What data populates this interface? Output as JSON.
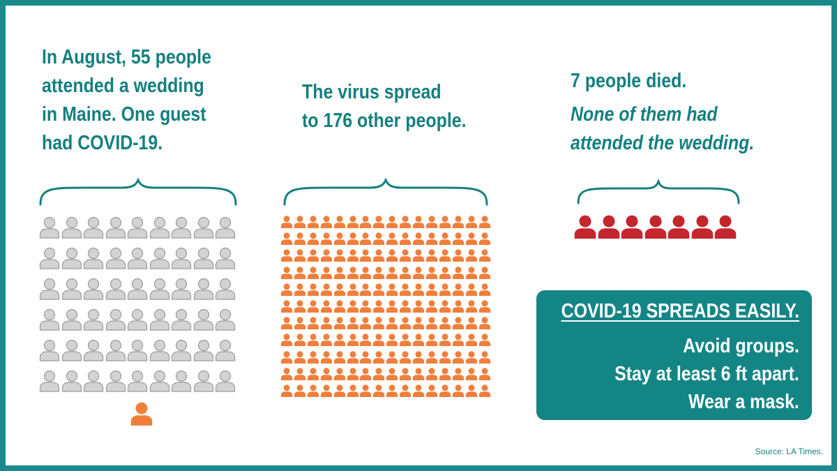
{
  "colors": {
    "teal": "#1a8a8a",
    "text_teal": "#14807f",
    "attendee_gray": "#d3d3d3",
    "infected_orange": "#f07f3c",
    "died_red": "#c4262e",
    "white": "#ffffff"
  },
  "panel_wedding": {
    "lines": [
      "In August, 55 people",
      "attended a wedding",
      "in Maine. One guest",
      "had COVID-19."
    ],
    "icon": "person-icon",
    "attendee_count": 54,
    "infected_guest_count": 1
  },
  "panel_spread": {
    "lines": [
      "The virus spread",
      "to 176 other people."
    ],
    "icon": "person-icon",
    "infected_count": 176
  },
  "panel_deaths": {
    "line": "7 people died.",
    "italic_lines": [
      "None of them had",
      "attended the wedding."
    ],
    "icon": "person-icon",
    "death_count": 7
  },
  "callout": {
    "headline": "COVID-19 SPREADS EASILY.",
    "tips": [
      "Avoid groups.",
      "Stay at least 6 ft apart.",
      "Wear a mask."
    ]
  },
  "source": "Source: LA Times."
}
